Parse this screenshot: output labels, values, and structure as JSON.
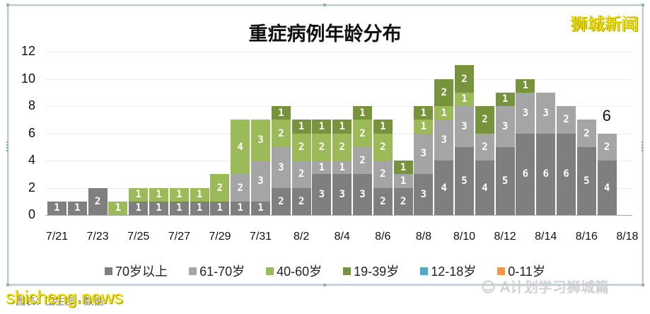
{
  "chart_data": {
    "type": "bar",
    "stacked": true,
    "title": "重症病例年龄分布",
    "xlabel": "",
    "ylabel": "",
    "ylim": [
      0,
      12
    ],
    "yticks": [
      0,
      2,
      4,
      6,
      8,
      10,
      12
    ],
    "grid": true,
    "legend_position": "bottom",
    "categories": [
      "7/21",
      "7/22",
      "7/23",
      "7/24",
      "7/25",
      "7/26",
      "7/27",
      "7/28",
      "7/29",
      "7/30",
      "7/31",
      "8/1",
      "8/2",
      "8/3",
      "8/4",
      "8/5",
      "8/6",
      "8/7",
      "8/8",
      "8/9",
      "8/10",
      "8/11",
      "8/12",
      "8/13",
      "8/14",
      "8/15",
      "8/16",
      "8/17"
    ],
    "xtick_labels": [
      "7/21",
      "7/23",
      "7/25",
      "7/27",
      "7/29",
      "7/31",
      "8/2",
      "8/4",
      "8/6",
      "8/8",
      "8/10",
      "8/12",
      "8/14",
      "8/16",
      "8/18"
    ],
    "series": [
      {
        "name": "70岁以上",
        "color": "#7f7f7f",
        "values": [
          1,
          1,
          2,
          0,
          1,
          1,
          1,
          1,
          1,
          1,
          1,
          2,
          2,
          3,
          3,
          3,
          2,
          2,
          3,
          4,
          5,
          4,
          5,
          6,
          6,
          6,
          5,
          4
        ]
      },
      {
        "name": "61-70岁",
        "color": "#a5a5a5",
        "values": [
          0,
          0,
          0,
          0,
          0,
          0,
          0,
          0,
          0,
          2,
          3,
          3,
          2,
          1,
          1,
          2,
          2,
          1,
          3,
          3,
          3,
          2,
          3,
          3,
          3,
          2,
          2,
          2
        ]
      },
      {
        "name": "40-60岁",
        "color": "#9bbb59",
        "values": [
          0,
          0,
          0,
          1,
          1,
          1,
          1,
          1,
          2,
          4,
          3,
          2,
          2,
          2,
          2,
          2,
          2,
          0,
          1,
          1,
          1,
          0,
          0,
          0,
          0,
          0,
          0,
          0
        ]
      },
      {
        "name": "19-39岁",
        "color": "#77933c",
        "values": [
          0,
          0,
          0,
          0,
          0,
          0,
          0,
          0,
          0,
          0,
          0,
          1,
          1,
          1,
          1,
          1,
          1,
          1,
          1,
          2,
          2,
          2,
          1,
          1,
          0,
          0,
          0,
          0
        ]
      },
      {
        "name": "12-18岁",
        "color": "#4bacc6",
        "values": [
          0,
          0,
          0,
          0,
          0,
          0,
          0,
          0,
          0,
          0,
          0,
          0,
          0,
          0,
          0,
          0,
          0,
          0,
          0,
          0,
          0,
          0,
          0,
          0,
          0,
          0,
          0,
          0
        ]
      },
      {
        "name": "0-11岁",
        "color": "#f79646",
        "values": [
          0,
          0,
          0,
          0,
          0,
          0,
          0,
          0,
          0,
          0,
          0,
          0,
          0,
          0,
          0,
          0,
          0,
          0,
          0,
          0,
          0,
          0,
          0,
          0,
          0,
          0,
          0,
          0
        ]
      }
    ],
    "annotations": [
      {
        "category": "8/17",
        "text": "6"
      }
    ]
  },
  "header": {
    "title": "重症病例年龄分布",
    "brand": "狮城新闻"
  },
  "legend": [
    {
      "label": "70岁以上",
      "color": "#7f7f7f"
    },
    {
      "label": "61-70岁",
      "color": "#a5a5a5"
    },
    {
      "label": "40-60岁",
      "color": "#9bbb59"
    },
    {
      "label": "19-39岁",
      "color": "#77933c"
    },
    {
      "label": "12-18岁",
      "color": "#4bacc6"
    },
    {
      "label": "0-11岁",
      "color": "#f79646"
    }
  ],
  "watermarks": {
    "bottom_left": "shicheng.news",
    "source_text": "图表：卫生部 • 数据",
    "wechat": "A计划学习狮城篇"
  }
}
